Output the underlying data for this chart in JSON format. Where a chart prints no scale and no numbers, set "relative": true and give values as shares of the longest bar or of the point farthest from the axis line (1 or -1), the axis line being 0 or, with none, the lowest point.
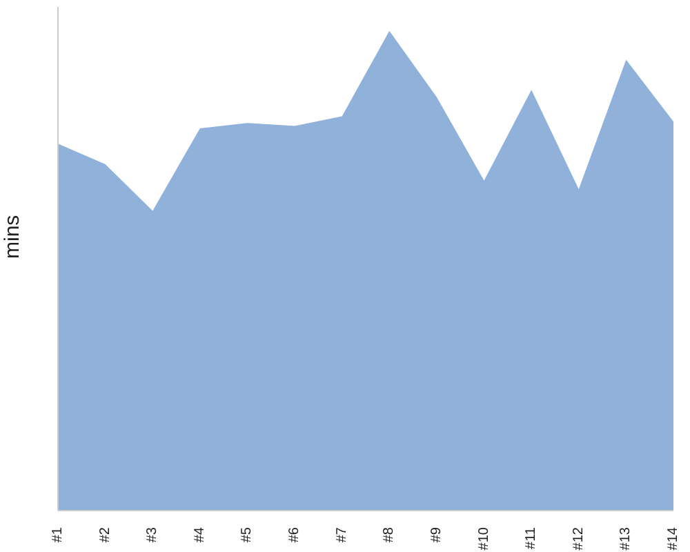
{
  "chart_data": {
    "type": "area",
    "relative": true,
    "ylabel": "mins",
    "color": "#8fb1da",
    "categories": [
      "#1",
      "#2",
      "#3",
      "#4",
      "#5",
      "#6",
      "#7",
      "#8",
      "#9",
      "#10",
      "#11",
      "#12",
      "#13",
      "#14"
    ],
    "values": [
      0.765,
      0.722,
      0.625,
      0.797,
      0.808,
      0.802,
      0.822,
      1,
      0.862,
      0.688,
      0.877,
      0.67,
      0.94,
      0.811
    ]
  }
}
